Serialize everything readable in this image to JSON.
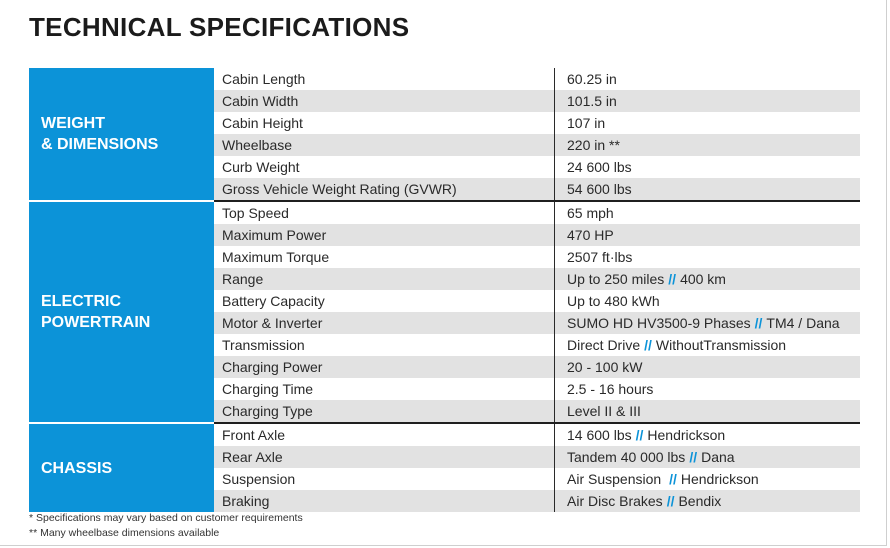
{
  "title": "TECHNICAL SPECIFICATIONS",
  "accent_color": "#0c93d8",
  "sections": [
    {
      "label": "WEIGHT\n& DIMENSIONS",
      "rows": [
        {
          "name": "Cabin Length",
          "value": [
            "60.25 in"
          ]
        },
        {
          "name": "Cabin Width",
          "value": [
            "101.5 in"
          ]
        },
        {
          "name": "Cabin Height",
          "value": [
            "107 in"
          ]
        },
        {
          "name": "Wheelbase",
          "value": [
            "220 in **"
          ]
        },
        {
          "name": "Curb Weight",
          "value": [
            "24 600 lbs"
          ]
        },
        {
          "name": "Gross Vehicle Weight Rating (GVWR)",
          "value": [
            "54 600 lbs"
          ]
        }
      ]
    },
    {
      "label": "ELECTRIC\nPOWERTRAIN",
      "rows": [
        {
          "name": "Top Speed",
          "value": [
            "65 mph"
          ]
        },
        {
          "name": "Maximum Power",
          "value": [
            "470 HP"
          ]
        },
        {
          "name": "Maximum Torque",
          "value": [
            "2507 ft·lbs"
          ]
        },
        {
          "name": "Range",
          "value": [
            "Up to 250 miles",
            "400 km"
          ]
        },
        {
          "name": "Battery Capacity",
          "value": [
            "Up to 480 kWh"
          ]
        },
        {
          "name": "Motor & Inverter",
          "value": [
            "SUMO HD HV3500-9 Phases",
            "TM4 / Dana"
          ]
        },
        {
          "name": "Transmission",
          "value": [
            "Direct Drive",
            "WithoutTransmission"
          ]
        },
        {
          "name": "Charging Power",
          "value": [
            "20 - 100 kW"
          ]
        },
        {
          "name": "Charging Time",
          "value": [
            "2.5 - 16 hours"
          ]
        },
        {
          "name": "Charging Type",
          "value": [
            "Level II & III"
          ]
        }
      ]
    },
    {
      "label": "CHASSIS",
      "rows": [
        {
          "name": "Front Axle",
          "value": [
            "14 600 lbs",
            "Hendrickson"
          ]
        },
        {
          "name": "Rear Axle",
          "value": [
            "Tandem 40 000 lbs",
            "Dana"
          ]
        },
        {
          "name": "Suspension",
          "value": [
            "Air Suspension ",
            "Hendrickson"
          ]
        },
        {
          "name": "Braking",
          "value": [
            "Air Disc Brakes",
            "Bendix"
          ]
        }
      ]
    }
  ],
  "separator": "//",
  "notes": [
    "* Specifications may vary based on customer requirements",
    "** Many wheelbase dimensions available"
  ]
}
